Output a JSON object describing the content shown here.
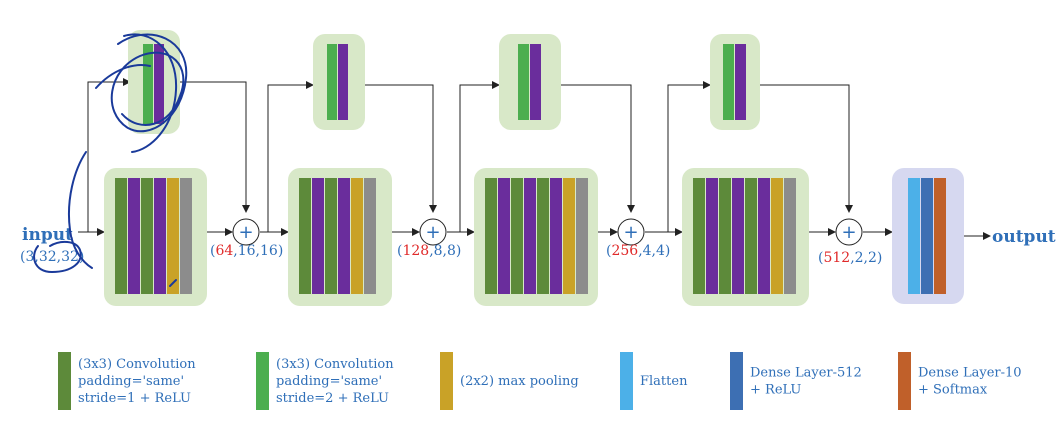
{
  "colors": {
    "conv_s1": "#5d8a3a",
    "conv_s2": "#4cae4f",
    "relu_purple": "#6a2d9c",
    "maxpool": "#c9a227",
    "gray": "#8c8c8c",
    "flatten": "#4cb0e8",
    "dense512": "#3d6fb3",
    "dense10": "#c0602a",
    "block_bg": "#d8e8c8",
    "out_block_bg": "#d6d8f0",
    "text_blue": "#2f6fb8",
    "text_red": "#e02a2a",
    "arrow": "#222222",
    "scribble": "#1a3a9a"
  },
  "io": {
    "input_label": "input",
    "input_shape_open": "(",
    "input_shape_value": "3,32,32",
    "input_shape_close": ")",
    "output_label": "output"
  },
  "stages": [
    {
      "open": "(",
      "channels": "64",
      "rest": ",16,16)"
    },
    {
      "open": "(",
      "channels": "128",
      "rest": ",8,8)"
    },
    {
      "open": "(",
      "channels": "256",
      "rest": ",4,4)"
    },
    {
      "open": "(",
      "channels": "512",
      "rest": ",2,2)"
    }
  ],
  "add_symbol": "+",
  "legend": [
    {
      "color_key": "conv_s1",
      "lines": [
        "(3x3) Convolution",
        "padding='same'",
        "stride=1 + ReLU"
      ]
    },
    {
      "color_key": "conv_s2",
      "lines": [
        "(3x3) Convolution",
        "padding='same'",
        "stride=2 + ReLU"
      ]
    },
    {
      "color_key": "maxpool",
      "lines": [
        "(2x2) max pooling"
      ]
    },
    {
      "color_key": "flatten",
      "lines": [
        "Flatten"
      ]
    },
    {
      "color_key": "dense512",
      "lines": [
        "Dense Layer-512",
        "+ ReLU"
      ]
    },
    {
      "color_key": "dense10",
      "lines": [
        "Dense Layer-10",
        "+ Softmax"
      ]
    }
  ]
}
